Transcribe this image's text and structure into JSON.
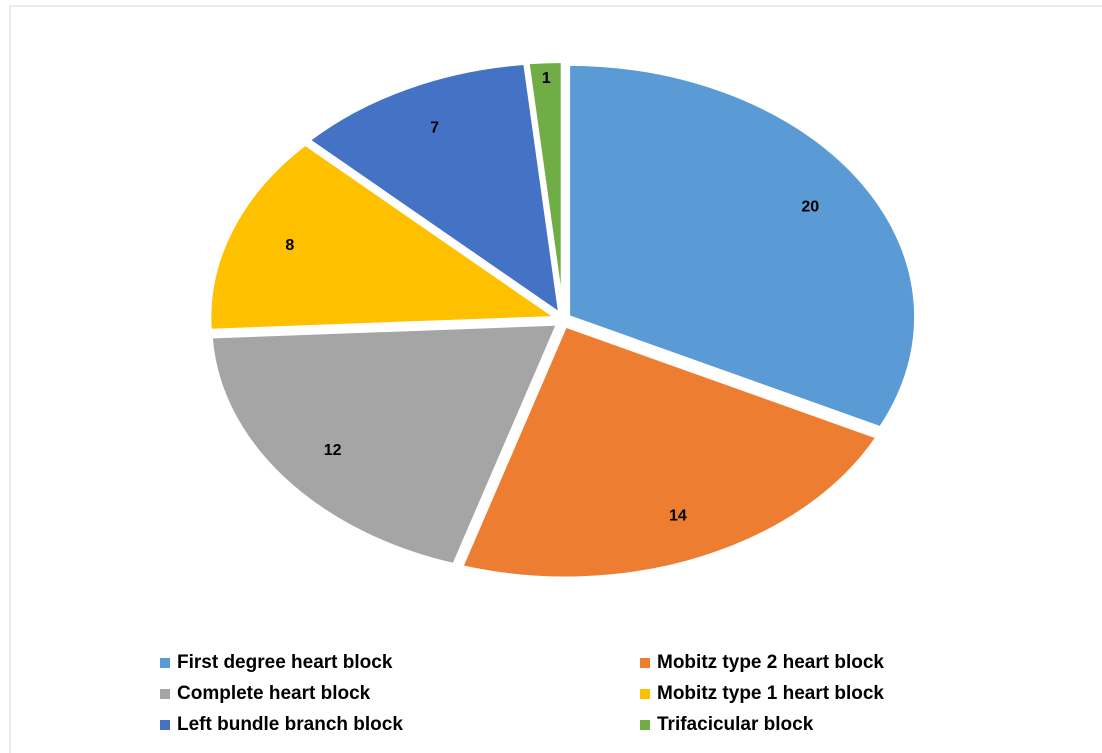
{
  "chart_data": {
    "type": "pie",
    "categories": [
      "First degree heart block",
      "Mobitz type 2 heart block",
      "Complete heart block",
      "Mobitz type 1 heart block",
      "Left bundle branch block",
      "Trifacicular block"
    ],
    "values": [
      20,
      14,
      12,
      8,
      7,
      1
    ],
    "colors": [
      "#5b9bd5",
      "#ed7d31",
      "#a5a5a5",
      "#ffc000",
      "#4472c4",
      "#70ad47"
    ],
    "legend": "bottom"
  }
}
